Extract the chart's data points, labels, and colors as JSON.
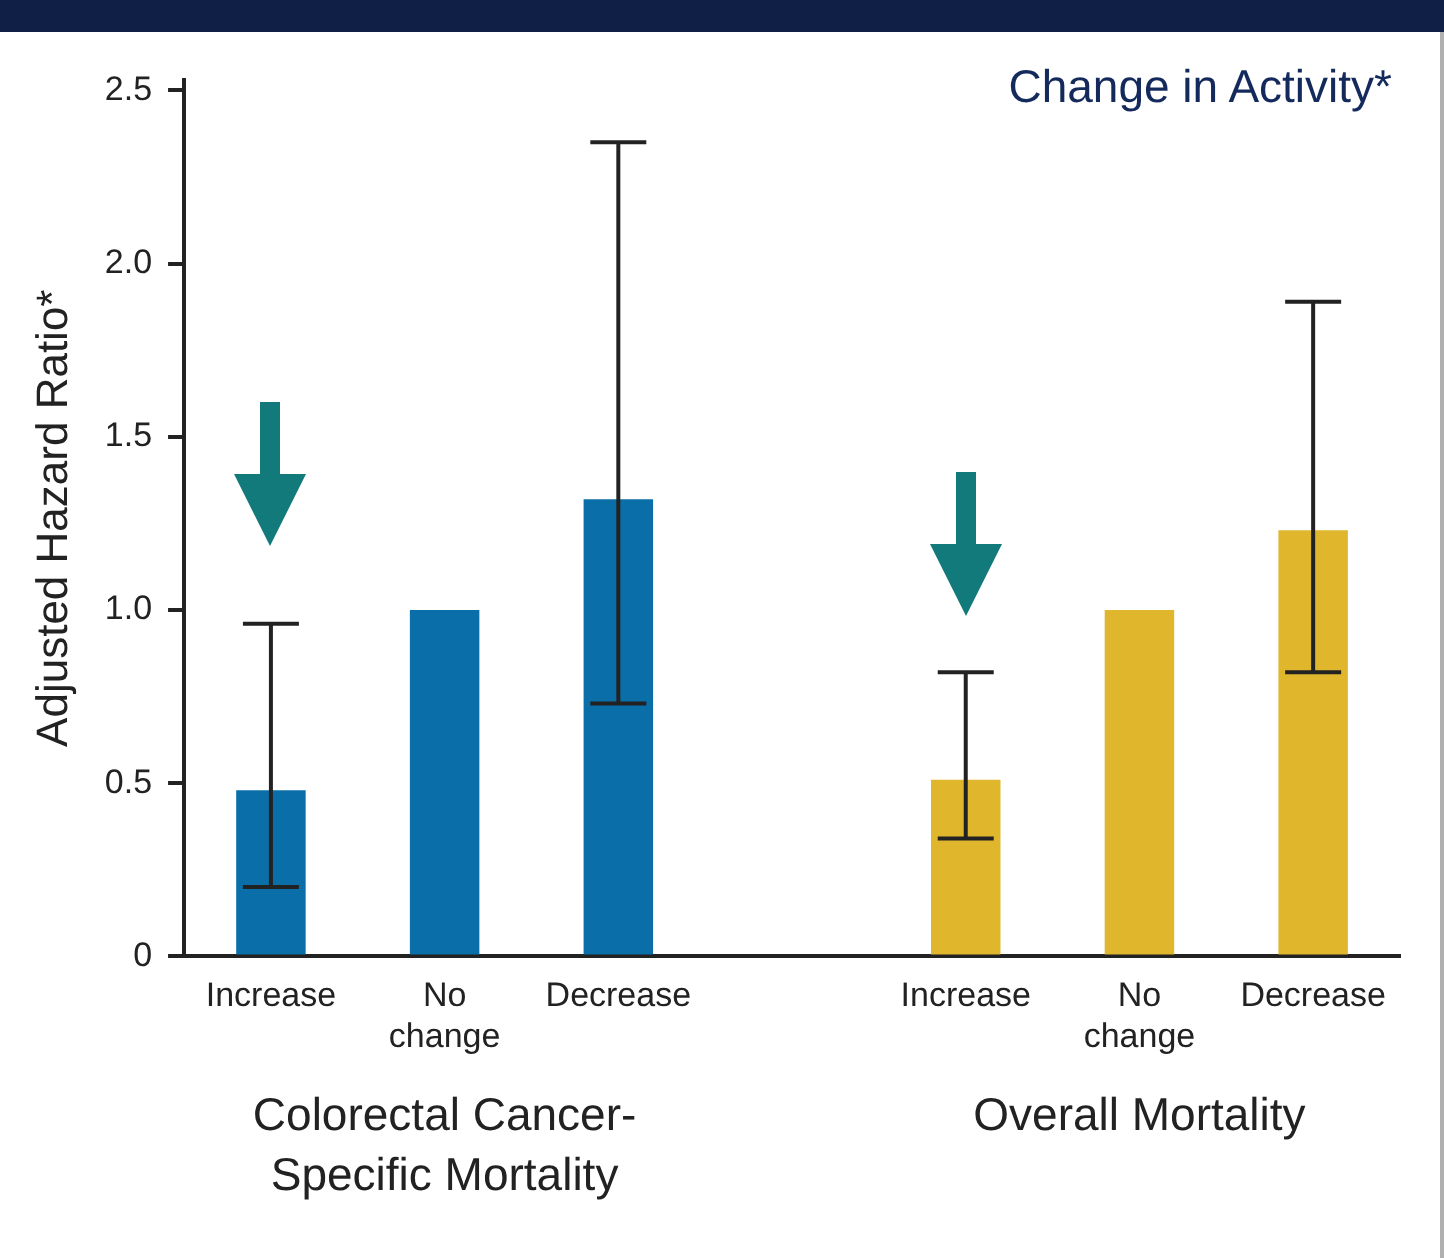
{
  "chart_data": {
    "type": "bar",
    "title": "Change in Activity*",
    "ylabel": "Adjusted Hazard Ratio*",
    "categories": [
      "Increase",
      "No change",
      "Decrease",
      null,
      "Increase",
      "No change",
      "Decrease"
    ],
    "series": [
      {
        "color": "#0a6ea8",
        "values": [
          0.48,
          1.0,
          1.32,
          null,
          null,
          null,
          null
        ],
        "errors": [
          [
            0.2,
            0.96
          ],
          null,
          [
            0.73,
            2.35
          ],
          null,
          null,
          null,
          null
        ]
      },
      {
        "color": "#e0b62c",
        "values": [
          null,
          null,
          null,
          null,
          0.51,
          1.0,
          1.23
        ],
        "errors": [
          null,
          null,
          null,
          null,
          [
            0.34,
            0.82
          ],
          null,
          [
            0.82,
            1.89
          ]
        ]
      }
    ],
    "annotations": [
      "Colorectal Cancer-Specific Mortality",
      "Overall Mortality"
    ],
    "ylim": [
      0,
      2.53
    ],
    "yticks": [
      0,
      0.5,
      {
        "value": 1,
        "label": "1.0"
      },
      1.5,
      {
        "value": 2,
        "label": "2.0"
      },
      2.5
    ],
    "grid": false,
    "legend": false
  }
}
